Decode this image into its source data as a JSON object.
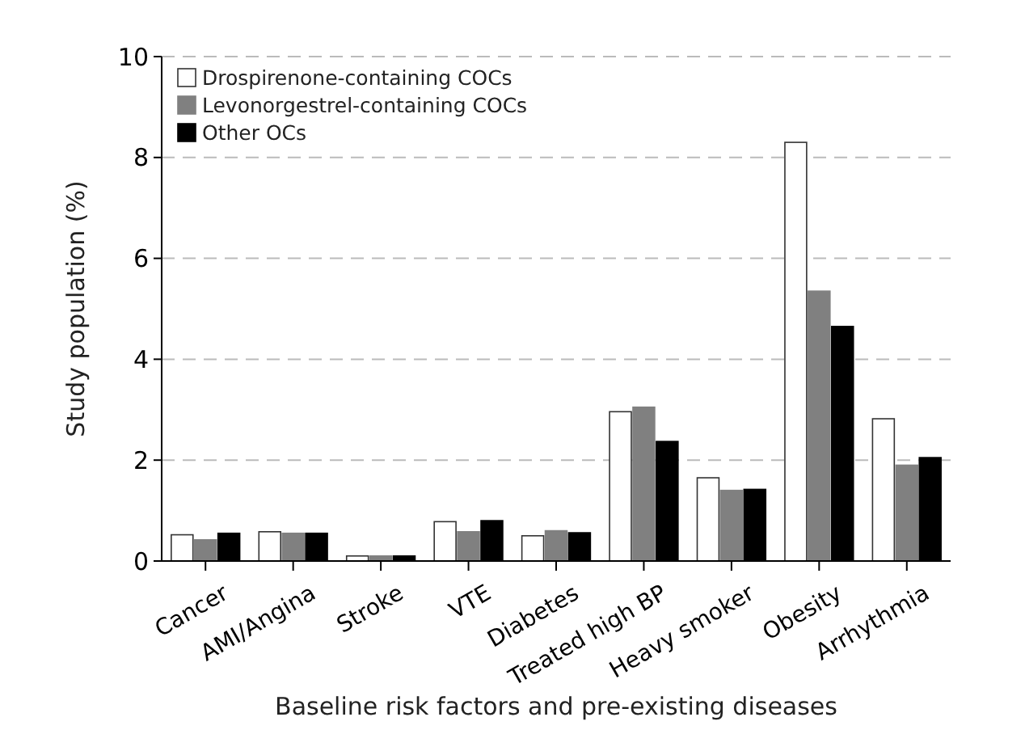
{
  "chart_data": {
    "type": "bar",
    "xlabel": "Baseline risk factors and pre-existing diseases",
    "ylabel": "Study population (%)",
    "categories": [
      "Cancer",
      "AMI/Angina",
      "Stroke",
      "VTE",
      "Diabetes",
      "Treated high BP",
      "Heavy smoker",
      "Obesity",
      "Arrhythmia"
    ],
    "series": [
      {
        "name": "Drospirenone-containing COCs",
        "color": "#ffffff",
        "values": [
          0.52,
          0.58,
          0.1,
          0.78,
          0.5,
          2.96,
          1.65,
          8.3,
          2.82
        ]
      },
      {
        "name": "Levonorgestrel-containing COCs",
        "color": "#808080",
        "values": [
          0.42,
          0.55,
          0.1,
          0.58,
          0.6,
          3.05,
          1.4,
          5.35,
          1.9
        ]
      },
      {
        "name": "Other OCs",
        "color": "#000000",
        "values": [
          0.55,
          0.55,
          0.1,
          0.8,
          0.56,
          2.37,
          1.42,
          4.65,
          2.05
        ]
      }
    ],
    "ylim": [
      0,
      10
    ],
    "yticks": [
      0,
      2,
      4,
      6,
      8,
      10
    ],
    "grid": "y",
    "legend": "top left"
  }
}
